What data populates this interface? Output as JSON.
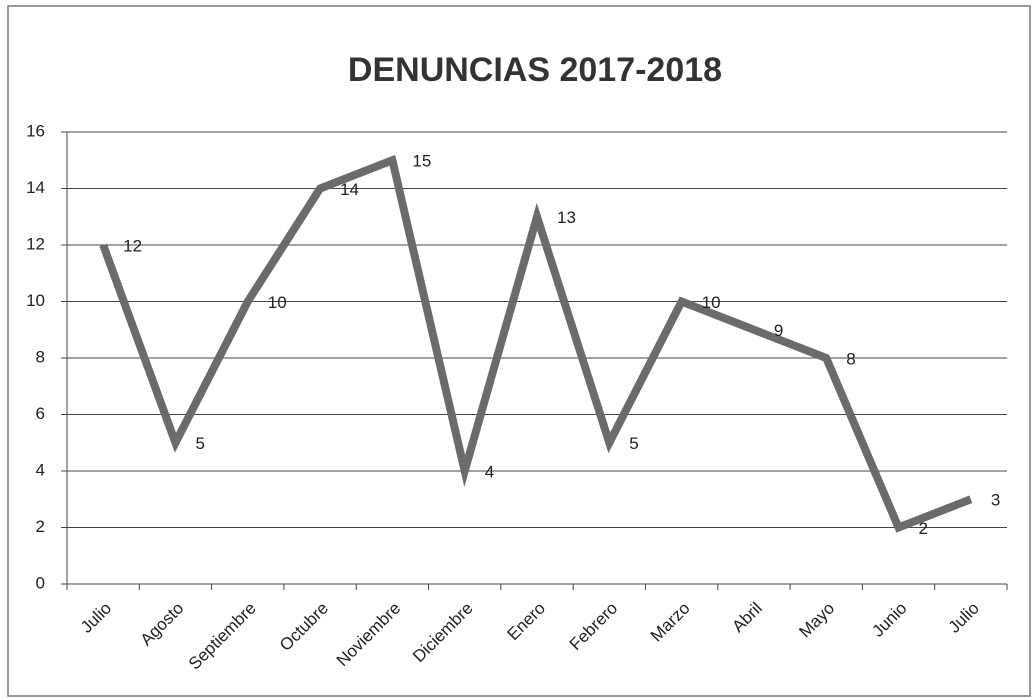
{
  "chart_data": {
    "type": "line",
    "title": "DENUNCIAS 2017-2018",
    "categories": [
      "Julio",
      "Agosto",
      "Septiembre",
      "Octubre",
      "Noviembre",
      "Diciembre",
      "Enero",
      "Febrero",
      "Marzo",
      "Abril",
      "Mayo",
      "Junio",
      "Julio"
    ],
    "values": [
      12,
      5,
      10,
      14,
      15,
      4,
      13,
      5,
      10,
      9,
      8,
      2,
      3
    ],
    "color": "#6b6b6b",
    "ylim": [
      0,
      16
    ],
    "yticks": [
      0,
      2,
      4,
      6,
      8,
      10,
      12,
      14,
      16
    ],
    "grid": true
  }
}
